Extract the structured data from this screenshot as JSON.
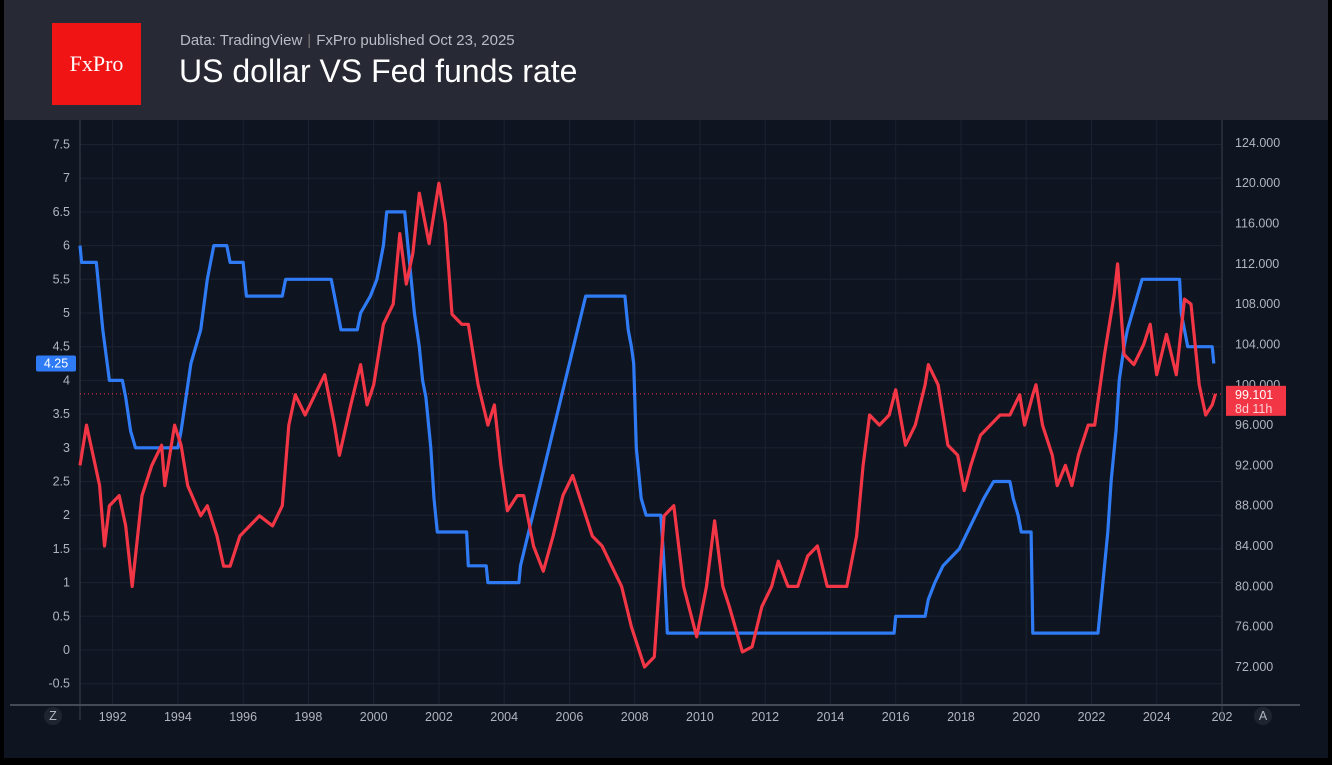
{
  "header": {
    "logo": "FxPro",
    "source": "Data: TradingView",
    "published": "FxPro published Oct 23,  2025",
    "title": "US dollar VS Fed funds rate"
  },
  "axis_buttons": {
    "left": "Z",
    "right": "A"
  },
  "colors": {
    "fed": "#2f7bf6",
    "dxy": "#f23645",
    "background": "#0e1420",
    "header": "#272a35"
  },
  "chart_data": {
    "type": "line",
    "title": "US dollar VS Fed funds rate",
    "grid": true,
    "x_ticks": [
      "1992",
      "1994",
      "1996",
      "1998",
      "2000",
      "2002",
      "2004",
      "2006",
      "2008",
      "2010",
      "2012",
      "2014",
      "2016",
      "2018",
      "2020",
      "2022",
      "2024",
      "202"
    ],
    "xlim": [
      1991.0,
      2026.0
    ],
    "left_axis": {
      "ylim": [
        -1.0,
        8.0
      ],
      "ticks": [
        "-0.5",
        "0",
        "0.5",
        "1",
        "1.5",
        "2",
        "2.5",
        "3",
        "3.5",
        "4",
        "4.5",
        "5",
        "5.5",
        "6",
        "6.5",
        "7",
        "7.5"
      ]
    },
    "right_axis": {
      "ylim": [
        68,
        126
      ],
      "ticks": [
        "72.000",
        "76.000",
        "80.000",
        "84.000",
        "88.000",
        "92.000",
        "96.000",
        "100.000",
        "104.000",
        "108.000",
        "112.000",
        "116.000",
        "120.000",
        "124.000"
      ]
    },
    "series": [
      {
        "axis": "left",
        "color": "#2f7bf6",
        "last_label": "4.25",
        "x": [
          1991.0,
          1991.05,
          1991.1,
          1991.5,
          1991.7,
          1991.9,
          1992.3,
          1992.4,
          1992.55,
          1992.7,
          1992.8,
          1994.0,
          1994.1,
          1994.25,
          1994.4,
          1994.7,
          1994.9,
          1995.1,
          1995.5,
          1995.6,
          1996.0,
          1996.1,
          1997.2,
          1997.3,
          1998.7,
          1998.8,
          1998.9,
          1999.0,
          1999.5,
          1999.6,
          1999.9,
          2000.1,
          2000.2,
          2000.3,
          2000.4,
          2000.95,
          2001.05,
          2001.15,
          2001.25,
          2001.4,
          2001.5,
          2001.6,
          2001.75,
          2001.85,
          2001.95,
          2002.85,
          2002.9,
          2003.45,
          2003.5,
          2004.45,
          2004.5,
          2005.0,
          2005.5,
          2006.0,
          2006.5,
          2007.7,
          2007.8,
          2007.9,
          2007.97,
          2008.05,
          2008.2,
          2008.35,
          2008.8,
          2008.87,
          2008.93,
          2009.0,
          2015.95,
          2016.0,
          2016.9,
          2017.0,
          2017.2,
          2017.45,
          2017.95,
          2018.2,
          2018.45,
          2018.7,
          2019.0,
          2019.5,
          2019.6,
          2019.75,
          2019.85,
          2020.15,
          2020.2,
          2022.2,
          2022.25,
          2022.35,
          2022.5,
          2022.6,
          2022.75,
          2022.85,
          2023.0,
          2023.1,
          2023.25,
          2023.4,
          2023.55,
          2024.7,
          2024.75,
          2024.85,
          2024.95,
          2025.7,
          2025.75
        ],
        "y": [
          6.0,
          5.75,
          5.75,
          5.75,
          4.75,
          4.0,
          4.0,
          3.75,
          3.25,
          3.0,
          3.0,
          3.0,
          3.25,
          3.75,
          4.25,
          4.75,
          5.5,
          6.0,
          6.0,
          5.75,
          5.75,
          5.25,
          5.25,
          5.5,
          5.5,
          5.25,
          5.0,
          4.75,
          4.75,
          5.0,
          5.25,
          5.5,
          5.75,
          6.0,
          6.5,
          6.5,
          6.0,
          5.5,
          5.0,
          4.5,
          4.0,
          3.75,
          3.0,
          2.25,
          1.75,
          1.75,
          1.25,
          1.25,
          1.0,
          1.0,
          1.25,
          2.25,
          3.25,
          4.25,
          5.25,
          5.25,
          4.75,
          4.5,
          4.25,
          3.0,
          2.25,
          2.0,
          2.0,
          1.5,
          1.0,
          0.25,
          0.25,
          0.5,
          0.5,
          0.75,
          1.0,
          1.25,
          1.5,
          1.75,
          2.0,
          2.25,
          2.5,
          2.5,
          2.25,
          2.0,
          1.75,
          1.75,
          0.25,
          0.25,
          0.5,
          1.0,
          1.75,
          2.5,
          3.25,
          4.0,
          4.5,
          4.75,
          5.0,
          5.25,
          5.5,
          5.5,
          5.0,
          4.75,
          4.5,
          4.5,
          4.25
        ]
      },
      {
        "axis": "right",
        "color": "#f23645",
        "last_label": "99.101",
        "countdown": "8d 11h",
        "x": [
          1991.0,
          1991.2,
          1991.4,
          1991.6,
          1991.75,
          1991.9,
          1992.2,
          1992.4,
          1992.6,
          1992.9,
          1993.2,
          1993.5,
          1993.6,
          1993.9,
          1994.1,
          1994.3,
          1994.7,
          1994.9,
          1995.2,
          1995.4,
          1995.6,
          1995.9,
          1996.2,
          1996.5,
          1996.9,
          1997.2,
          1997.4,
          1997.6,
          1997.9,
          1998.2,
          1998.5,
          1998.8,
          1998.95,
          1999.3,
          1999.6,
          1999.8,
          2000.0,
          2000.3,
          2000.6,
          2000.8,
          2001.0,
          2001.2,
          2001.4,
          2001.7,
          2002.0,
          2002.2,
          2002.4,
          2002.7,
          2002.9,
          2003.2,
          2003.5,
          2003.7,
          2003.9,
          2004.1,
          2004.4,
          2004.6,
          2004.9,
          2005.2,
          2005.5,
          2005.8,
          2006.1,
          2006.4,
          2006.7,
          2007.0,
          2007.3,
          2007.6,
          2007.9,
          2008.1,
          2008.3,
          2008.6,
          2008.9,
          2009.2,
          2009.5,
          2009.9,
          2010.2,
          2010.45,
          2010.7,
          2010.9,
          2011.3,
          2011.6,
          2011.9,
          2012.2,
          2012.4,
          2012.7,
          2013.0,
          2013.3,
          2013.6,
          2013.9,
          2014.2,
          2014.5,
          2014.8,
          2015.0,
          2015.2,
          2015.5,
          2015.8,
          2016.0,
          2016.3,
          2016.6,
          2016.9,
          2017.0,
          2017.3,
          2017.6,
          2017.9,
          2018.1,
          2018.3,
          2018.6,
          2018.9,
          2019.2,
          2019.5,
          2019.8,
          2019.95,
          2020.2,
          2020.3,
          2020.5,
          2020.8,
          2020.95,
          2021.2,
          2021.4,
          2021.6,
          2021.9,
          2022.1,
          2022.4,
          2022.7,
          2022.8,
          2023.0,
          2023.3,
          2023.6,
          2023.8,
          2024.0,
          2024.3,
          2024.6,
          2024.85,
          2025.05,
          2025.3,
          2025.5,
          2025.7,
          2025.8
        ],
        "y": [
          92,
          96,
          93,
          90,
          84,
          88,
          89,
          86,
          80,
          89,
          92,
          94,
          90,
          96,
          94,
          90,
          87,
          88,
          85,
          82,
          82,
          85,
          86,
          87,
          86,
          88,
          96,
          99,
          97,
          99,
          101,
          96,
          93,
          98,
          102,
          98,
          100,
          106,
          108,
          115,
          110,
          113,
          119,
          114,
          120,
          116,
          107,
          106,
          106,
          100,
          96,
          98,
          92,
          87.5,
          89,
          89,
          84,
          81.5,
          85,
          89,
          91,
          88,
          85,
          84,
          82,
          80,
          76,
          74,
          72,
          73,
          87,
          88,
          80,
          75,
          80,
          86.5,
          80,
          78,
          73.5,
          74,
          78,
          80,
          82.5,
          80,
          80,
          83,
          84,
          80,
          80,
          80,
          85,
          92,
          97,
          96,
          97,
          99.5,
          94,
          96,
          100,
          102,
          100,
          94,
          93,
          89.5,
          92,
          95,
          96,
          97,
          97,
          99,
          96,
          99,
          100,
          96,
          93,
          90,
          92,
          90,
          93,
          96,
          96,
          103,
          109,
          112,
          103,
          102,
          104,
          106,
          101,
          105,
          101,
          108.5,
          108,
          100,
          97,
          98,
          99.1
        ]
      }
    ]
  }
}
